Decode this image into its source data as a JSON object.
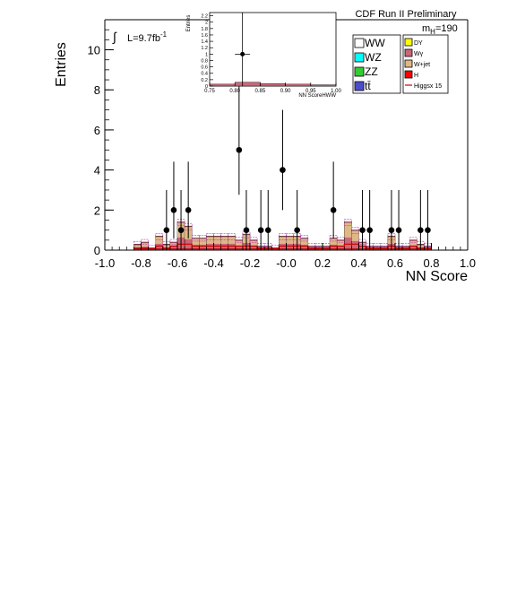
{
  "header": {
    "title": "CDF Run II Preliminary",
    "mass_prefix": "m",
    "mass_subscript": "H",
    "mass_value": "=190",
    "lumi_prefix": "L=9.7fb",
    "lumi_exp": "-1"
  },
  "legend": {
    "col1": [
      {
        "label": "WW",
        "color": "#ffffff"
      },
      {
        "label": "WZ",
        "color": "#00ffff"
      },
      {
        "label": "ZZ",
        "color": "#33cc33"
      },
      {
        "label": "tt̄",
        "color": "#4c4ccc"
      }
    ],
    "col2": [
      {
        "label": "DY",
        "color": "#ffff00"
      },
      {
        "label": "Wγ",
        "color": "#cc6677"
      },
      {
        "label": "W+jet",
        "color": "#deb887"
      },
      {
        "label": "H",
        "color": "#ff0000"
      },
      {
        "label": "Higgsx 15",
        "color": "#cc0000"
      }
    ]
  },
  "chart_data": [
    {
      "type": "bar",
      "panel": "main",
      "xlabel": "NN Score",
      "ylabel": "Entries",
      "xlim": [
        -1.0,
        1.0
      ],
      "ylim": [
        0,
        11.5
      ],
      "xticks": [
        "-1.0",
        "-0.8",
        "-0.6",
        "-0.4",
        "-0.2",
        "-0.0",
        "0.2",
        "0.4",
        "0.6",
        "0.8",
        "1.0"
      ],
      "yticks": [
        "0",
        "2",
        "4",
        "6",
        "8",
        "10"
      ],
      "bin_edges": [
        -0.84,
        -0.8,
        -0.76,
        -0.72,
        -0.68,
        -0.64,
        -0.6,
        -0.56,
        -0.52,
        -0.48,
        -0.44,
        -0.4,
        -0.36,
        -0.32,
        -0.28,
        -0.24,
        -0.2,
        -0.16,
        -0.12,
        -0.08,
        -0.04,
        0.0,
        0.04,
        0.08,
        0.12,
        0.16,
        0.2,
        0.24,
        0.28,
        0.32,
        0.36,
        0.4,
        0.44,
        0.48,
        0.52,
        0.56,
        0.6,
        0.64,
        0.68,
        0.72,
        0.76,
        0.8
      ],
      "background_total": [
        0.3,
        0.4,
        0.1,
        0.7,
        0.3,
        0.4,
        1.4,
        1.2,
        0.6,
        0.6,
        0.7,
        0.7,
        0.7,
        0.7,
        0.5,
        0.8,
        0.5,
        0.2,
        0.2,
        0.1,
        0.7,
        0.7,
        0.7,
        0.6,
        0.2,
        0.2,
        0.2,
        0.6,
        0.5,
        1.4,
        1.0,
        0.4,
        0.2,
        0.2,
        0.2,
        0.7,
        0.2,
        0.2,
        0.5,
        0.3,
        0.2
      ],
      "higgs_x15": [
        0.1,
        0.1,
        0.1,
        0.2,
        0.1,
        0.2,
        0.3,
        0.3,
        0.2,
        0.2,
        0.2,
        0.2,
        0.2,
        0.2,
        0.2,
        0.2,
        0.2,
        0.1,
        0.1,
        0.1,
        0.2,
        0.2,
        0.2,
        0.2,
        0.1,
        0.1,
        0.1,
        0.2,
        0.2,
        0.3,
        0.3,
        0.2,
        0.1,
        0.1,
        0.1,
        0.2,
        0.1,
        0.1,
        0.2,
        0.1,
        0.1
      ],
      "data_points": [
        {
          "x": -0.66,
          "y": 1
        },
        {
          "x": -0.62,
          "y": 2
        },
        {
          "x": -0.58,
          "y": 1
        },
        {
          "x": -0.54,
          "y": 2
        },
        {
          "x": -0.26,
          "y": 5
        },
        {
          "x": -0.22,
          "y": 1
        },
        {
          "x": -0.14,
          "y": 1
        },
        {
          "x": -0.1,
          "y": 1
        },
        {
          "x": -0.02,
          "y": 4
        },
        {
          "x": 0.06,
          "y": 1
        },
        {
          "x": 0.26,
          "y": 2
        },
        {
          "x": 0.42,
          "y": 1
        },
        {
          "x": 0.46,
          "y": 1
        },
        {
          "x": 0.58,
          "y": 1
        },
        {
          "x": 0.62,
          "y": 1
        },
        {
          "x": 0.74,
          "y": 1
        },
        {
          "x": 0.78,
          "y": 1
        }
      ]
    },
    {
      "type": "bar",
      "panel": "inset",
      "xlabel": "NN ScoreHWW",
      "ylabel": "Entries",
      "xlim": [
        0.75,
        1.0
      ],
      "ylim": [
        0,
        2.3
      ],
      "xticks": [
        "0.75",
        "0.80",
        "0.85",
        "0.90",
        "0.95",
        "1.00"
      ],
      "yticks": [
        "0",
        "0.2",
        "0.4",
        "0.6",
        "0.8",
        "1",
        "1.2",
        "1.4",
        "1.6",
        "1.8",
        "2",
        "2.2"
      ],
      "bin_edges": [
        0.75,
        0.8,
        0.85,
        0.9,
        0.95,
        1.0
      ],
      "background_total": [
        0.06,
        0.12,
        0.08,
        0.06,
        0.04
      ],
      "data_points": [
        {
          "x": 0.815,
          "y": 1
        }
      ]
    }
  ]
}
